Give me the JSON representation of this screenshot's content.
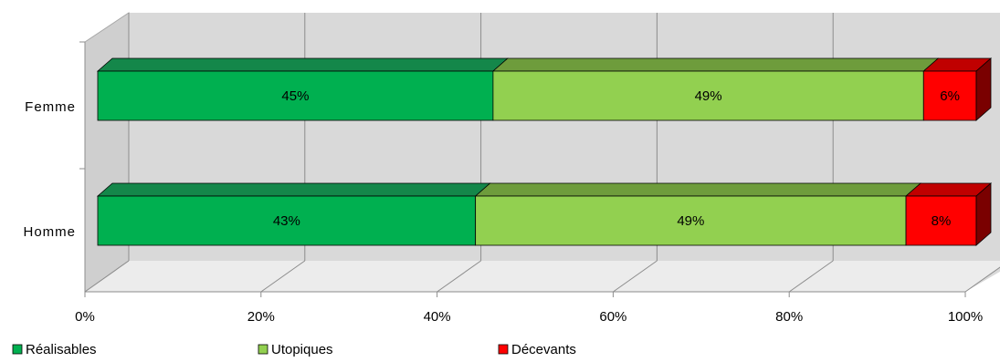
{
  "chart_data": {
    "type": "bar",
    "orientation": "horizontal",
    "stacked": "percent",
    "categories": [
      "Femme",
      "Homme"
    ],
    "series": [
      {
        "name": "Réalisables",
        "values": [
          45,
          43
        ],
        "labels": [
          "45%",
          "43%"
        ],
        "color": "#00b050",
        "top_color": "#14874a",
        "side_color": "#0a6b38"
      },
      {
        "name": "Utopiques",
        "values": [
          49,
          49
        ],
        "labels": [
          "49%",
          "49%"
        ],
        "color": "#92d050",
        "top_color": "#6e9c3c",
        "side_color": "#5a8030"
      },
      {
        "name": "Décevants",
        "values": [
          6,
          8
        ],
        "labels": [
          "6%",
          "8%"
        ],
        "color": "#ff0000",
        "top_color": "#c00000",
        "side_color": "#7a0000"
      }
    ],
    "x_ticks": [
      "0%",
      "20%",
      "40%",
      "60%",
      "80%",
      "100%"
    ],
    "xlim": [
      0,
      100
    ],
    "grid": true,
    "legend_position": "bottom",
    "style": "3d"
  }
}
